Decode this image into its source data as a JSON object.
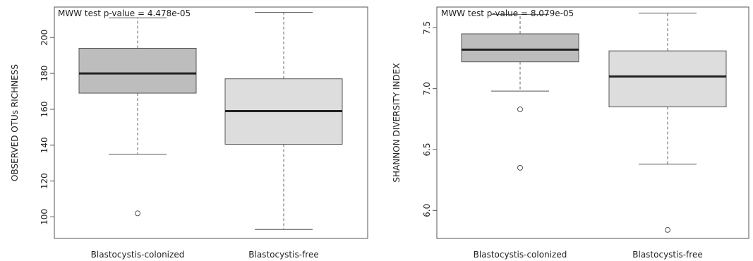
{
  "colors": {
    "background": "#ffffff",
    "box_colonized": "#bdbdbd",
    "box_free": "#dddddd",
    "border": "#555555",
    "median": "#222222",
    "whisker": "#666666",
    "text": "#222222"
  },
  "chart_data": [
    {
      "type": "boxplot",
      "title": "",
      "ylabel": "OBSERVED OTUs RICHNESS",
      "xlabel": "",
      "annotation": "MWW test p-value = 4.478e-05",
      "ylim": [
        88,
        217
      ],
      "yticks": [
        100,
        120,
        140,
        160,
        180,
        200
      ],
      "grid": false,
      "categories": [
        "Blastocystis-colonized",
        "Blastocystis-free"
      ],
      "boxes": [
        {
          "category": "Blastocystis-colonized",
          "min": 135,
          "q1": 169,
          "median": 180,
          "q3": 194,
          "max": 211,
          "outliers": [
            102
          ]
        },
        {
          "category": "Blastocystis-free",
          "min": 93,
          "q1": 140.5,
          "median": 159,
          "q3": 177,
          "max": 214,
          "outliers": []
        }
      ]
    },
    {
      "type": "boxplot",
      "title": "",
      "ylabel": "SHANNON DIVERSITY INDEX",
      "xlabel": "",
      "annotation": "MWW test p-value = 8.079e-05",
      "ylim": [
        5.77,
        7.67
      ],
      "yticks": [
        6.0,
        6.5,
        7.0,
        7.5
      ],
      "grid": false,
      "categories": [
        "Blastocystis-colonized",
        "Blastocystis-free"
      ],
      "boxes": [
        {
          "category": "Blastocystis-colonized",
          "min": 6.98,
          "q1": 7.22,
          "median": 7.32,
          "q3": 7.45,
          "max": 7.61,
          "outliers": [
            6.83,
            6.35
          ]
        },
        {
          "category": "Blastocystis-free",
          "min": 6.38,
          "q1": 6.85,
          "median": 7.1,
          "q3": 7.31,
          "max": 7.62,
          "outliers": [
            5.84
          ]
        }
      ]
    }
  ]
}
